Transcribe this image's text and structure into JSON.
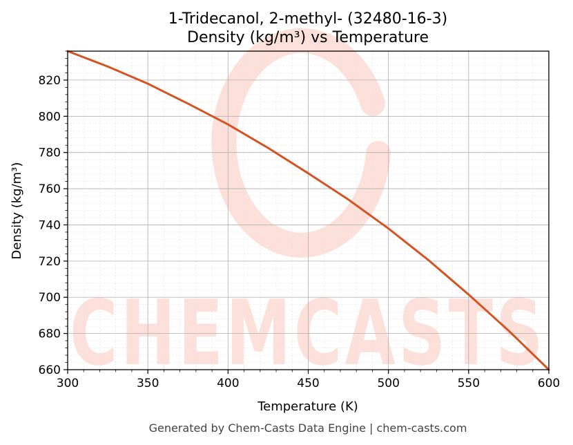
{
  "footer": "Generated by Chem-Casts Data Engine | chem-casts.com",
  "watermark": {
    "text": "CHEMCASTS",
    "color": "#fde0da"
  },
  "chart_data": {
    "type": "line",
    "title_line1": "1-Tridecanol, 2-methyl- (32480-16-3)",
    "title_line2": "Density (kg/m³) vs Temperature",
    "xlabel": "Temperature (K)",
    "ylabel": "Density (kg/m³)",
    "xlim": [
      300,
      600
    ],
    "ylim": [
      660,
      836
    ],
    "x_ticks": [
      300,
      350,
      400,
      450,
      500,
      550,
      600
    ],
    "y_ticks": [
      660,
      680,
      700,
      720,
      740,
      760,
      780,
      800,
      820
    ],
    "grid": true,
    "line_color": "#d35322",
    "series": [
      {
        "x": [
          300,
          325,
          350,
          375,
          400,
          425,
          450,
          475,
          500,
          525,
          550,
          575,
          600
        ],
        "y": [
          836,
          827.5,
          818,
          807,
          795.5,
          782.5,
          768.5,
          754,
          738,
          720.5,
          701.5,
          681.5,
          660
        ]
      }
    ]
  }
}
